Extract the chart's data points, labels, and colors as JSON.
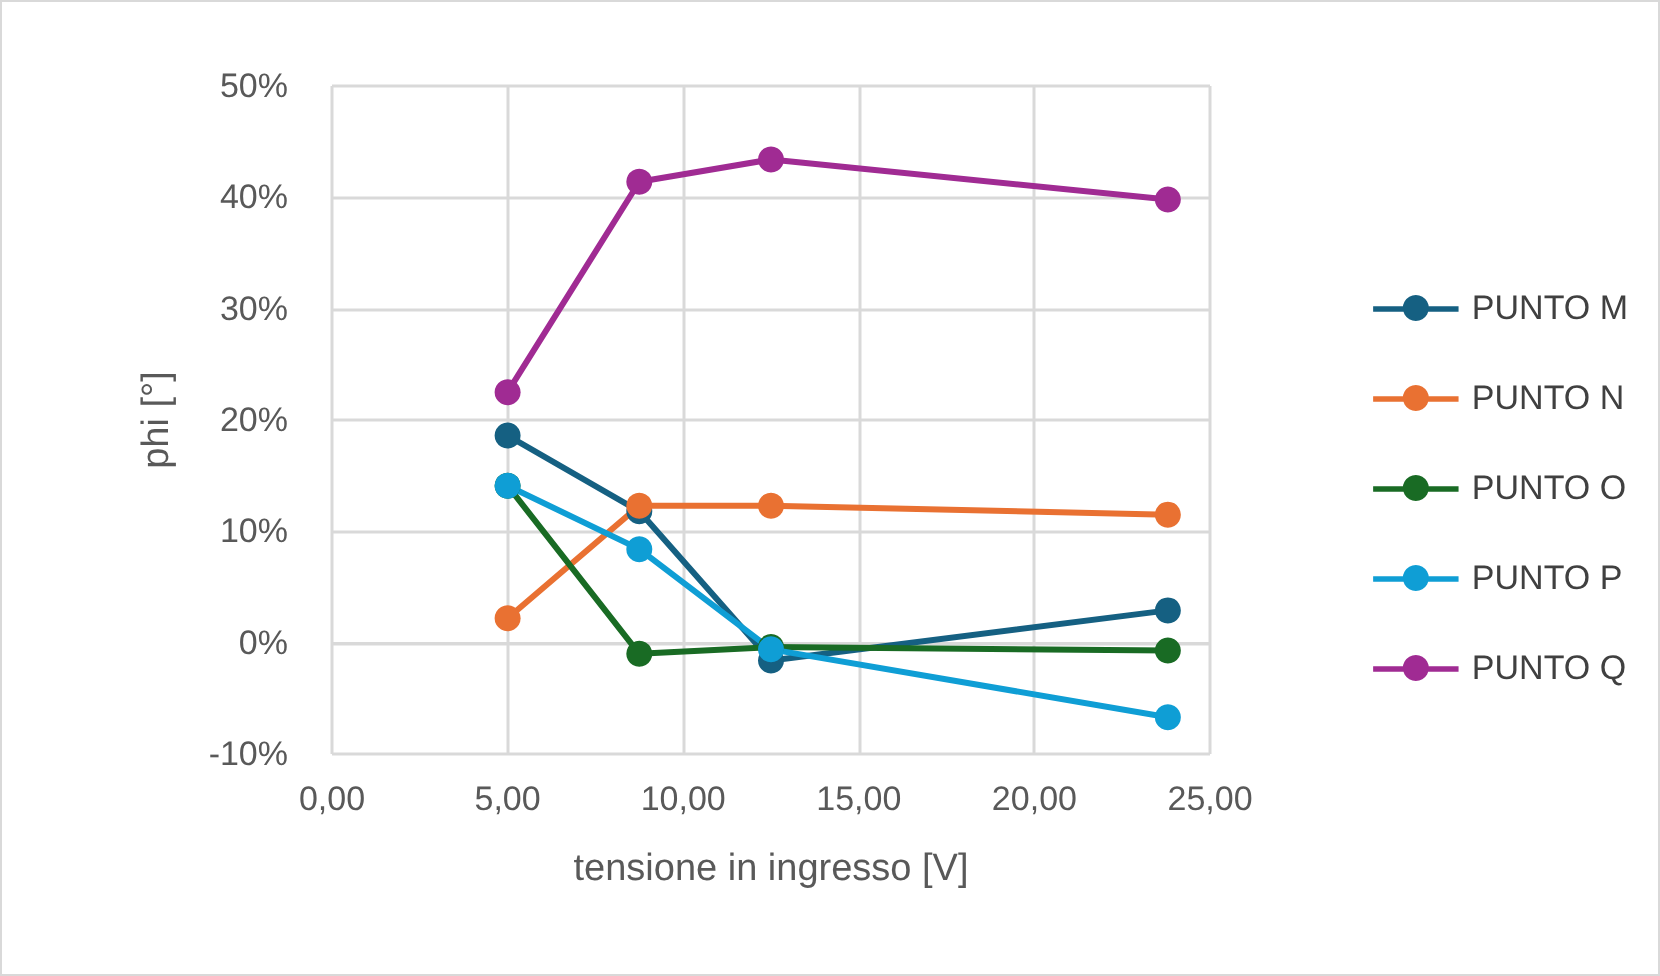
{
  "chart_data": {
    "type": "line",
    "xlabel": "tensione in ingresso [V]",
    "ylabel": "phi [°]",
    "x": [
      5.0,
      8.75,
      12.5,
      23.8
    ],
    "series": [
      {
        "name": "PUNTO M",
        "color": "#156082",
        "values": [
          18.6,
          11.8,
          -1.6,
          2.9
        ]
      },
      {
        "name": "PUNTO N",
        "color": "#e97132",
        "values": [
          2.2,
          12.3,
          12.3,
          11.5
        ]
      },
      {
        "name": "PUNTO O",
        "color": "#196b24",
        "values": [
          14.1,
          -1.0,
          -0.4,
          -0.7
        ]
      },
      {
        "name": "PUNTO P",
        "color": "#0f9ed5",
        "values": [
          14.1,
          8.4,
          -0.6,
          -6.7
        ]
      },
      {
        "name": "PUNTO Q",
        "color": "#a02b93",
        "values": [
          22.5,
          41.4,
          43.4,
          39.8
        ]
      }
    ],
    "xlim": [
      0,
      25
    ],
    "xticks": [
      {
        "value": 0,
        "label": "0,00"
      },
      {
        "value": 5,
        "label": "5,00"
      },
      {
        "value": 10,
        "label": "10,00"
      },
      {
        "value": 15,
        "label": "15,00"
      },
      {
        "value": 20,
        "label": "20,00"
      },
      {
        "value": 25,
        "label": "25,00"
      }
    ],
    "ylim": [
      -10,
      50
    ],
    "yticks": [
      {
        "value": -10,
        "label": "-10%"
      },
      {
        "value": 0,
        "label": "0%"
      },
      {
        "value": 10,
        "label": "10%"
      },
      {
        "value": 20,
        "label": "20%"
      },
      {
        "value": 30,
        "label": "30%"
      },
      {
        "value": 40,
        "label": "40%"
      },
      {
        "value": 50,
        "label": "50%"
      }
    ],
    "grid": true,
    "legend": "right",
    "marker": "circle",
    "line_style": "solid"
  }
}
